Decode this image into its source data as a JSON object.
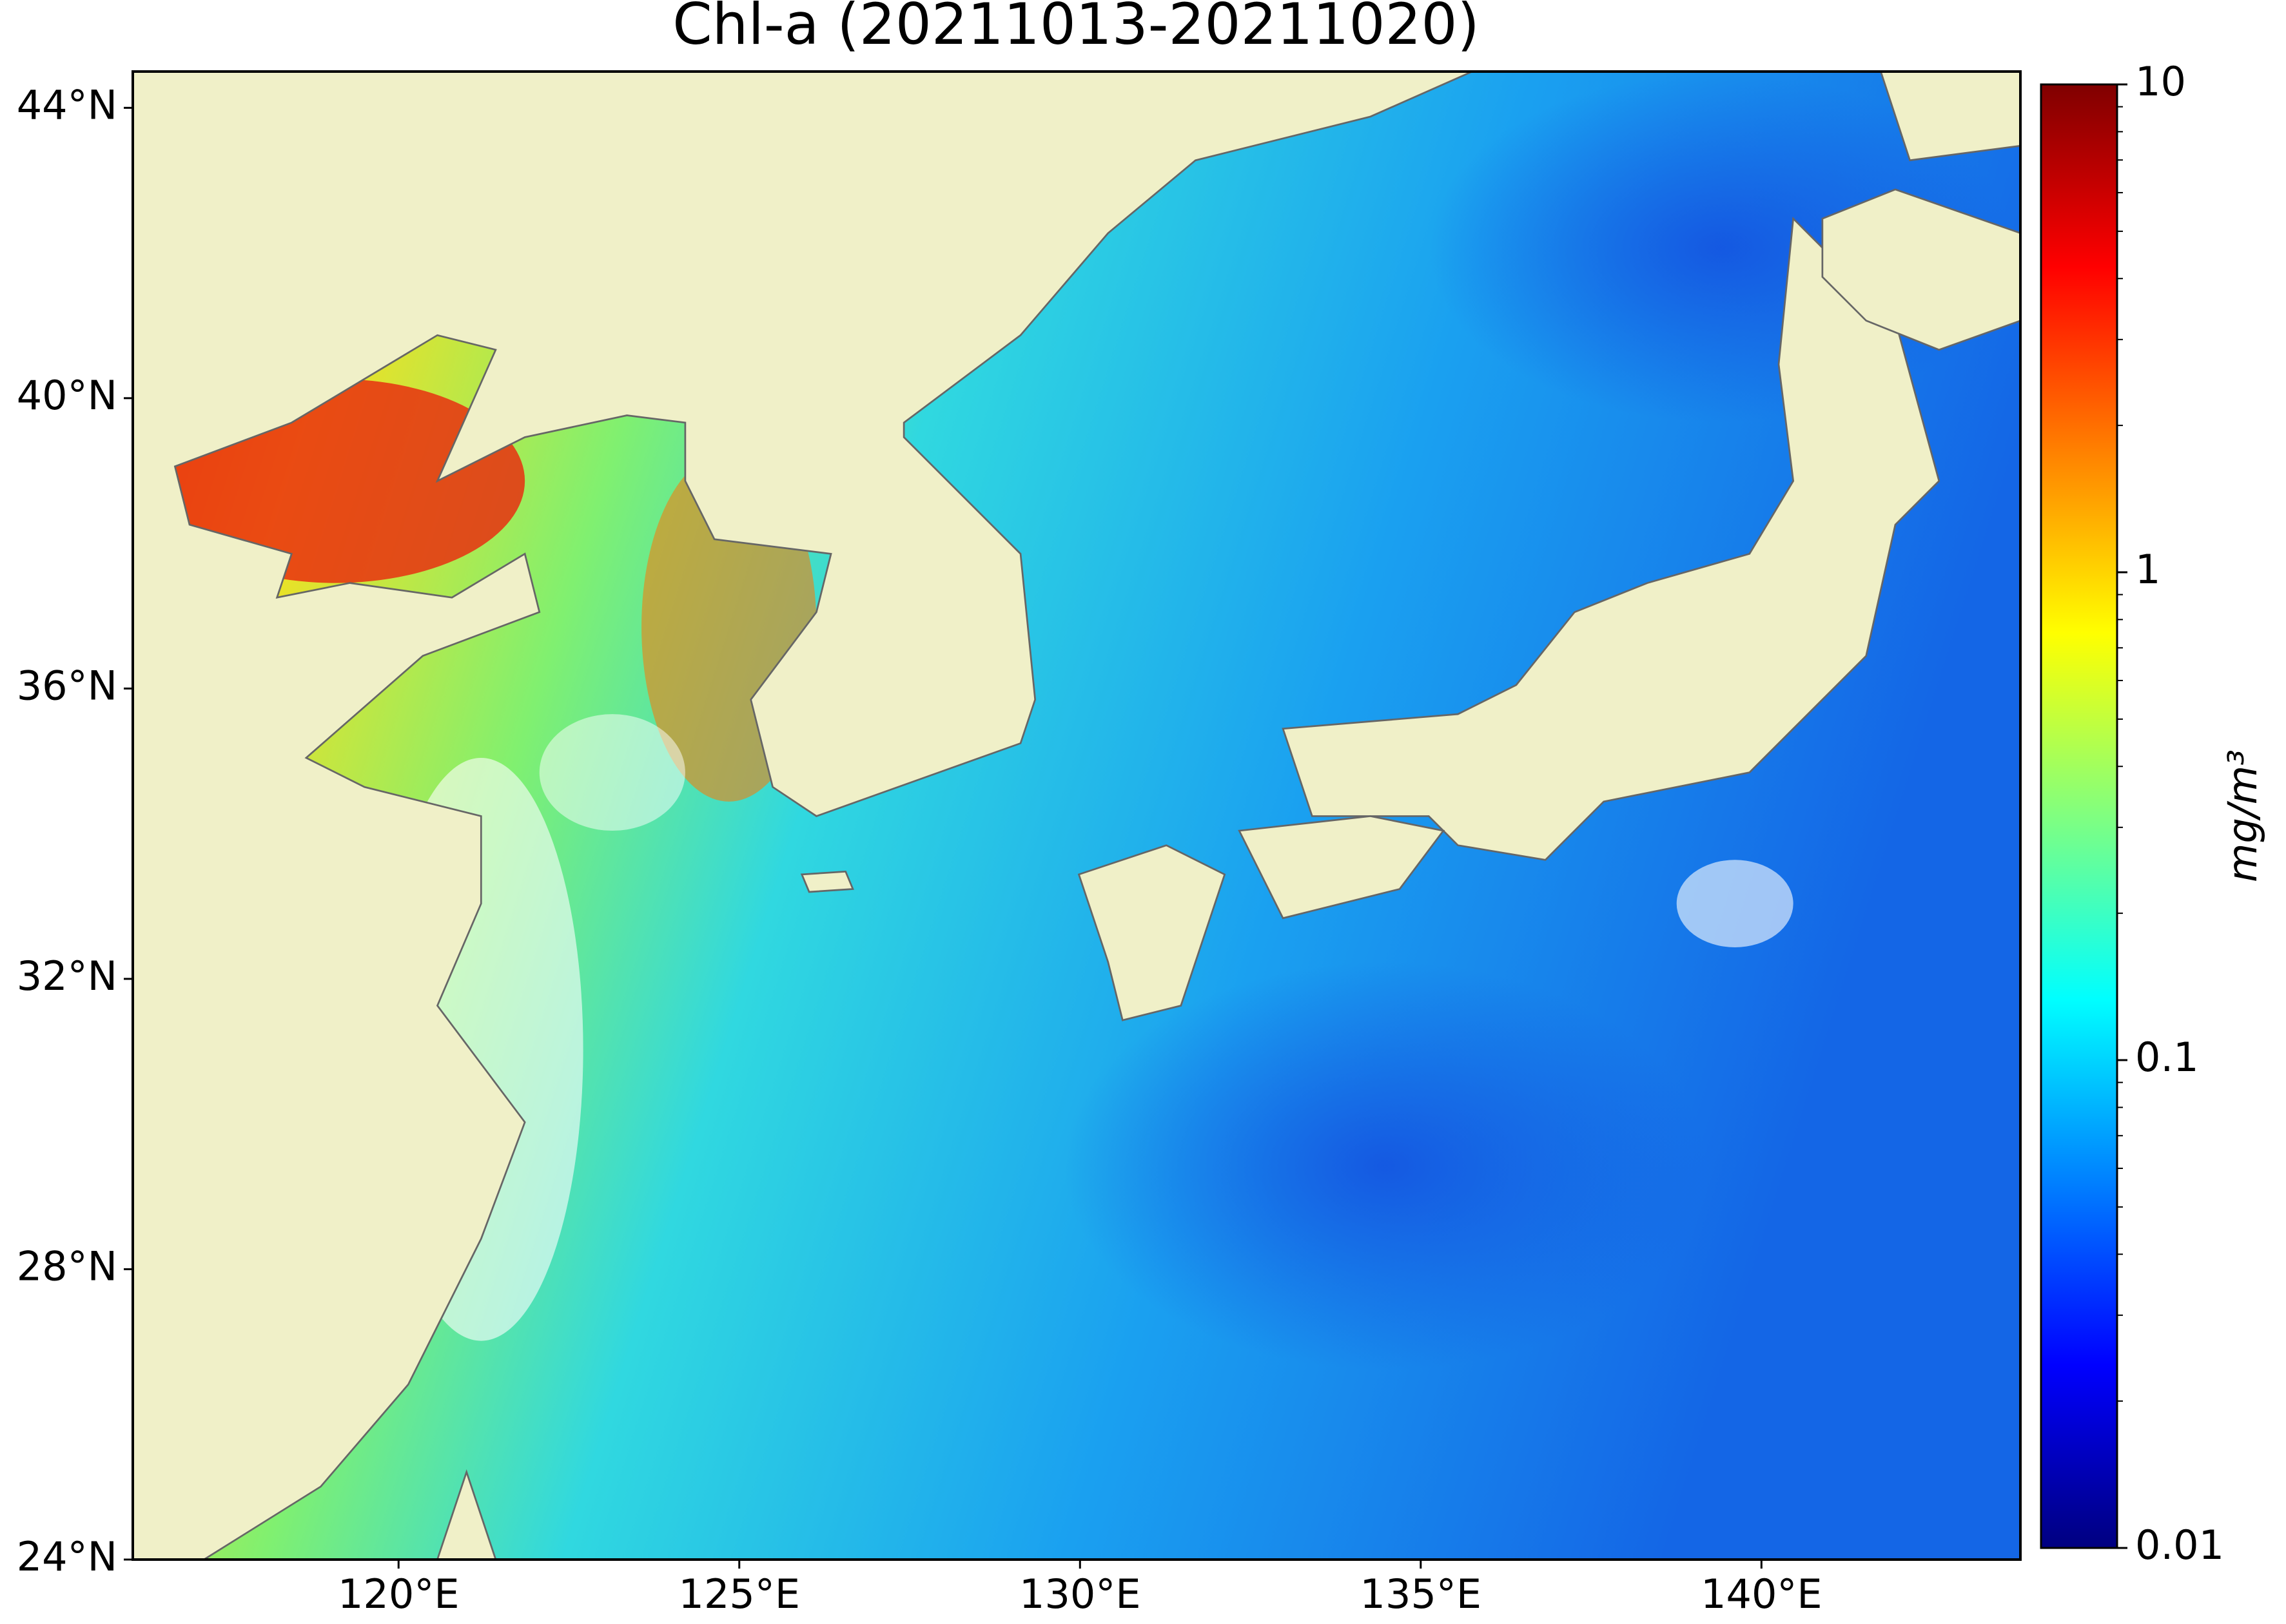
{
  "chart_data": {
    "type": "map",
    "title": "Chl-a (20211013-20211020)",
    "xlim": [
      116.1,
      143.8
    ],
    "ylim": [
      24,
      44.5
    ],
    "xticks": [
      {
        "value": 120,
        "label": "120°E"
      },
      {
        "value": 125,
        "label": "125°E"
      },
      {
        "value": 130,
        "label": "130°E"
      },
      {
        "value": 135,
        "label": "135°E"
      },
      {
        "value": 140,
        "label": "140°E"
      }
    ],
    "yticks": [
      {
        "value": 24,
        "label": "24°N"
      },
      {
        "value": 28,
        "label": "28°N"
      },
      {
        "value": 32,
        "label": "32°N"
      },
      {
        "value": 36,
        "label": "36°N"
      },
      {
        "value": 40,
        "label": "40°N"
      },
      {
        "value": 44,
        "label": "44°N"
      }
    ],
    "land_color": "#f0f0c8",
    "colorbar": {
      "colormap": "jet",
      "scale": "log",
      "lim": [
        0.01,
        10
      ],
      "ticks": [
        0.01,
        0.1,
        1,
        10
      ],
      "minor_ticks": [
        0.02,
        0.03,
        0.04,
        0.05,
        0.06,
        0.07,
        0.08,
        0.09,
        0.2,
        0.3,
        0.4,
        0.5,
        0.6,
        0.7,
        0.8,
        0.9,
        2,
        3,
        4,
        5,
        6,
        7,
        8,
        9
      ],
      "label": "mg/m³"
    }
  }
}
